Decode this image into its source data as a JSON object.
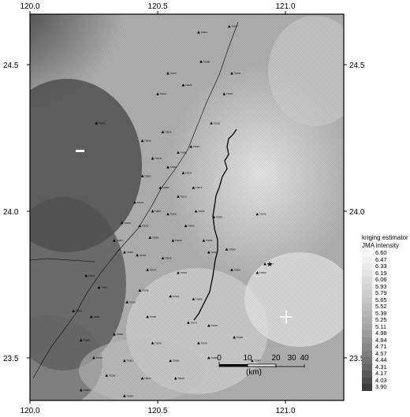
{
  "axes": {
    "x_ticks_top": [
      "120.0",
      "120.5",
      "121.0"
    ],
    "x_ticks_bottom": [
      "120.0",
      "120.5",
      "121.0"
    ],
    "y_ticks_left": [
      "24.5",
      "24.0",
      "23.5"
    ],
    "y_ticks_right": [
      "24.5",
      "24.0",
      "23.5"
    ]
  },
  "legend": {
    "title_line1": "kriging estimator",
    "title_line2": "JMA intensity",
    "values": [
      "6.60",
      "6.47",
      "6.33",
      "6.19",
      "6.06",
      "5.93",
      "5.79",
      "5.65",
      "5.52",
      "5.39",
      "5.25",
      "5.11",
      "4.98",
      "4.84",
      "4.71",
      "4.57",
      "4.44",
      "4.31",
      "4.17",
      "4.03",
      "3.90"
    ],
    "colors": [
      "#f6f6f6",
      "#f0f0f0",
      "#e9e9e9",
      "#e2e2e2",
      "#dbdbdb",
      "#d4d4d4",
      "#cdcdcd",
      "#c6c6c6",
      "#bebebe",
      "#b6b6b6",
      "#aeaeae",
      "#a5a5a5",
      "#9c9c9c",
      "#929292",
      "#888888",
      "#7d7d7d",
      "#727272",
      "#666666",
      "#595959",
      "#4b4b4b",
      "#3c3c3c"
    ]
  },
  "scale_bar": {
    "ticks": [
      "0",
      "10",
      "20",
      "30",
      "40"
    ],
    "unit": "(km)"
  },
  "stations": [
    {
      "lon": 120.66,
      "lat": 24.61,
      "name": "T0004"
    },
    {
      "lon": 120.84,
      "lat": 24.7,
      "name": "T0022"
    },
    {
      "lon": 120.95,
      "lat": 24.68,
      "name": "T0047"
    },
    {
      "lon": 120.78,
      "lat": 24.63,
      "name": "T0077"
    },
    {
      "lon": 120.67,
      "lat": 24.51,
      "name": "T0088"
    },
    {
      "lon": 120.79,
      "lat": 24.47,
      "name": "T0018"
    },
    {
      "lon": 120.54,
      "lat": 24.47,
      "name": "T0015"
    },
    {
      "lon": 120.6,
      "lat": 24.43,
      "name": "T0039"
    },
    {
      "lon": 120.76,
      "lat": 24.4,
      "name": "T0040"
    },
    {
      "lon": 120.5,
      "lat": 24.4,
      "name": "T0024"
    },
    {
      "lon": 120.71,
      "lat": 24.3,
      "name": "T0029"
    },
    {
      "lon": 120.52,
      "lat": 24.27,
      "name": "T0014"
    },
    {
      "lon": 120.44,
      "lat": 24.24,
      "name": "T0050"
    },
    {
      "lon": 120.63,
      "lat": 24.22,
      "name": "T0054"
    },
    {
      "lon": 120.58,
      "lat": 24.2,
      "name": "T0036"
    },
    {
      "lon": 120.48,
      "lat": 24.18,
      "name": "T0079"
    },
    {
      "lon": 120.54,
      "lat": 24.15,
      "name": "T0009"
    },
    {
      "lon": 120.6,
      "lat": 24.13,
      "name": "T0037"
    },
    {
      "lon": 120.44,
      "lat": 24.12,
      "name": "T0053"
    },
    {
      "lon": 120.51,
      "lat": 24.08,
      "name": "T0060"
    },
    {
      "lon": 120.64,
      "lat": 24.08,
      "name": "T0076"
    },
    {
      "lon": 120.58,
      "lat": 24.05,
      "name": "T0019"
    },
    {
      "lon": 120.41,
      "lat": 24.03,
      "name": "T0108"
    },
    {
      "lon": 120.48,
      "lat": 24.0,
      "name": "T0061"
    },
    {
      "lon": 120.54,
      "lat": 23.99,
      "name": "T0045"
    },
    {
      "lon": 120.65,
      "lat": 24.0,
      "name": "T0026"
    },
    {
      "lon": 120.36,
      "lat": 23.96,
      "name": "T0059"
    },
    {
      "lon": 120.43,
      "lat": 23.95,
      "name": "T0032"
    },
    {
      "lon": 120.61,
      "lat": 23.95,
      "name": "T0066"
    },
    {
      "lon": 120.72,
      "lat": 23.98,
      "name": "T0082"
    },
    {
      "lon": 120.89,
      "lat": 23.99,
      "name": "T0045"
    },
    {
      "lon": 120.33,
      "lat": 23.9,
      "name": "T0067"
    },
    {
      "lon": 120.47,
      "lat": 23.91,
      "name": "T0005"
    },
    {
      "lon": 120.56,
      "lat": 23.9,
      "name": "T0042"
    },
    {
      "lon": 120.68,
      "lat": 23.9,
      "name": "T0033"
    },
    {
      "lon": 120.37,
      "lat": 23.86,
      "name": "T0064"
    },
    {
      "lon": 120.42,
      "lat": 23.85,
      "name": "T0103"
    },
    {
      "lon": 120.52,
      "lat": 23.84,
      "name": "T0091"
    },
    {
      "lon": 120.7,
      "lat": 23.86,
      "name": "T0013"
    },
    {
      "lon": 120.77,
      "lat": 23.87,
      "name": "T0089"
    },
    {
      "lon": 120.92,
      "lat": 23.82,
      "name": "T0017"
    },
    {
      "lon": 120.46,
      "lat": 23.8,
      "name": "T0074"
    },
    {
      "lon": 120.58,
      "lat": 23.79,
      "name": "T0049"
    },
    {
      "lon": 120.79,
      "lat": 23.8,
      "name": "T0063"
    },
    {
      "lon": 120.89,
      "lat": 23.79,
      "name": "T0090"
    },
    {
      "lon": 120.22,
      "lat": 23.78,
      "name": "T0075"
    },
    {
      "lon": 120.27,
      "lat": 23.74,
      "name": "T0062"
    },
    {
      "lon": 120.43,
      "lat": 23.73,
      "name": "T0028"
    },
    {
      "lon": 120.55,
      "lat": 23.71,
      "name": "T0034"
    },
    {
      "lon": 120.64,
      "lat": 23.7,
      "name": "T0085"
    },
    {
      "lon": 120.38,
      "lat": 23.69,
      "name": "T0097"
    },
    {
      "lon": 120.17,
      "lat": 23.66,
      "name": "T0016"
    },
    {
      "lon": 120.24,
      "lat": 23.64,
      "name": "T0092"
    },
    {
      "lon": 120.46,
      "lat": 23.64,
      "name": "T0056"
    },
    {
      "lon": 120.62,
      "lat": 23.62,
      "name": "T0073"
    },
    {
      "lon": 120.7,
      "lat": 23.61,
      "name": "T0035"
    },
    {
      "lon": 120.33,
      "lat": 23.58,
      "name": "T0058"
    },
    {
      "lon": 120.2,
      "lat": 23.56,
      "name": "T0046"
    },
    {
      "lon": 120.48,
      "lat": 23.55,
      "name": "T0038"
    },
    {
      "lon": 120.66,
      "lat": 23.55,
      "name": "T0078"
    },
    {
      "lon": 120.8,
      "lat": 23.57,
      "name": "T0025"
    },
    {
      "lon": 120.25,
      "lat": 23.5,
      "name": "T0070"
    },
    {
      "lon": 120.37,
      "lat": 23.49,
      "name": "T0051"
    },
    {
      "lon": 120.55,
      "lat": 23.49,
      "name": "T0069"
    },
    {
      "lon": 120.7,
      "lat": 23.5,
      "name": "T0063"
    },
    {
      "lon": 120.87,
      "lat": 23.49,
      "name": "T0087"
    },
    {
      "lon": 120.3,
      "lat": 23.44,
      "name": "T0093"
    },
    {
      "lon": 120.44,
      "lat": 23.43,
      "name": "T0020"
    },
    {
      "lon": 120.57,
      "lat": 23.43,
      "name": "T0043"
    },
    {
      "lon": 120.2,
      "lat": 23.39,
      "name": "T0084"
    },
    {
      "lon": 120.37,
      "lat": 23.37,
      "name": "T0048"
    },
    {
      "lon": 120.5,
      "lat": 23.36,
      "name": "T0007"
    },
    {
      "lon": 120.27,
      "lat": 23.33,
      "name": "T0001"
    },
    {
      "lon": 120.42,
      "lat": 23.32,
      "name": "T0030"
    },
    {
      "lon": 120.56,
      "lat": 23.31,
      "name": "T0062"
    },
    {
      "lon": 120.26,
      "lat": 24.3,
      "name": "T0002"
    }
  ]
}
